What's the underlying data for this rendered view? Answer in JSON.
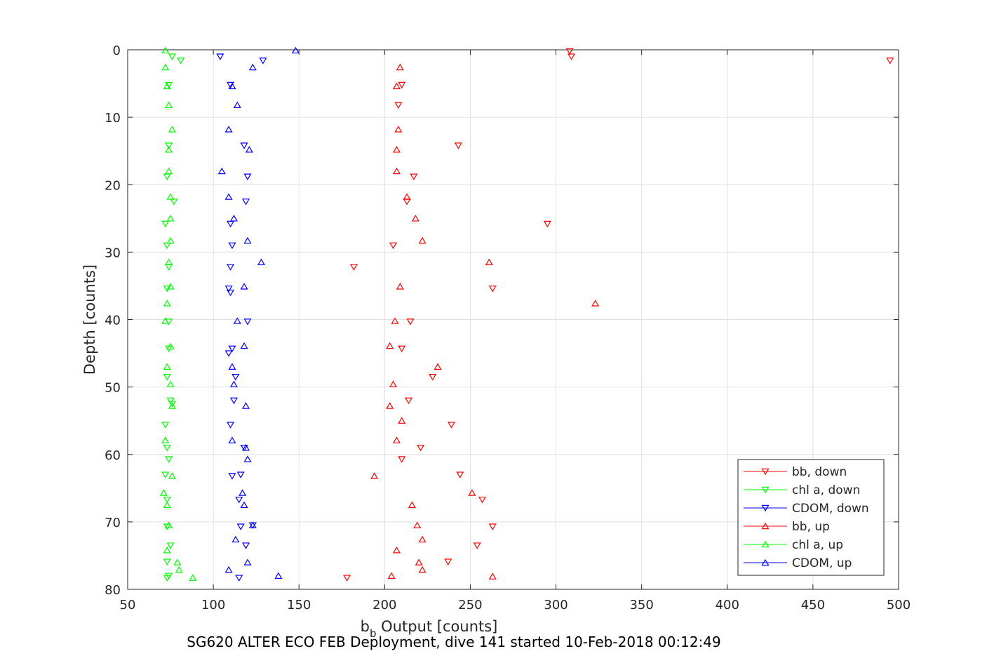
{
  "caption": "SG620 ALTER ECO FEB Deployment, dive 141 started 10-Feb-2018 00:12:49",
  "chart_data": {
    "type": "scatter",
    "xlabel_main": "b",
    "xlabel_sub": "b",
    "xlabel_rest": " Output [counts]",
    "ylabel": "Depth [counts]",
    "xlim": [
      50,
      500
    ],
    "ylim": [
      0,
      80
    ],
    "y_reversed": true,
    "grid": true,
    "legend_position": "lower-right",
    "xticks": [
      "50",
      "100",
      "150",
      "200",
      "250",
      "300",
      "350",
      "400",
      "450",
      "500"
    ],
    "yticks": [
      "0",
      "10",
      "20",
      "30",
      "40",
      "50",
      "60",
      "70",
      "80"
    ],
    "series": [
      {
        "name": "bb, down",
        "color": "#ff0000",
        "marker": "down",
        "x": [
          308,
          309,
          495,
          210,
          208,
          243,
          217,
          213,
          295,
          205,
          182,
          263,
          215,
          210,
          228,
          214,
          239,
          221,
          210,
          244,
          257,
          263,
          254,
          237,
          178
        ],
        "y": [
          0.2,
          1.0,
          1.6,
          5.2,
          8.2,
          14.2,
          18.8,
          22.5,
          25.8,
          29.0,
          32.2,
          35.4,
          40.3,
          44.3,
          48.5,
          52.0,
          55.6,
          59.0,
          60.7,
          63.0,
          66.7,
          70.7,
          73.5,
          75.9,
          78.3
        ]
      },
      {
        "name": "chl a, down",
        "color": "#00ff00",
        "marker": "down",
        "x": [
          76,
          81,
          74,
          74,
          73,
          77,
          72,
          73,
          74,
          73,
          74,
          74,
          73,
          75,
          72,
          73,
          74,
          72,
          73,
          73,
          75,
          73,
          74,
          73,
          76
        ],
        "y": [
          1.0,
          1.6,
          5.2,
          14.2,
          18.8,
          22.5,
          25.8,
          29.0,
          32.2,
          35.4,
          40.3,
          44.3,
          48.5,
          52.0,
          55.6,
          59.0,
          60.7,
          63.0,
          66.7,
          70.7,
          73.5,
          75.9,
          78.0,
          78.3,
          52.5
        ]
      },
      {
        "name": "CDOM, down",
        "color": "#0000ff",
        "marker": "down",
        "x": [
          104,
          129,
          110,
          118,
          120,
          119,
          110,
          111,
          110,
          109,
          120,
          111,
          113,
          112,
          110,
          118,
          111,
          115,
          116,
          119,
          115,
          116,
          110,
          109,
          123
        ],
        "y": [
          1.0,
          1.6,
          5.2,
          14.2,
          18.8,
          22.5,
          25.8,
          29.0,
          32.2,
          35.4,
          40.3,
          44.3,
          48.5,
          52.0,
          55.6,
          59.0,
          63.2,
          66.7,
          70.7,
          73.5,
          78.3,
          63.0,
          36.0,
          45.0,
          70.5
        ]
      },
      {
        "name": "bb, up",
        "color": "#ff0000",
        "marker": "up",
        "x": [
          209,
          207,
          208,
          207,
          207,
          213,
          218,
          222,
          261,
          209,
          323,
          206,
          203,
          231,
          205,
          203,
          210,
          207,
          194,
          251,
          216,
          219,
          222,
          207,
          220,
          222,
          204,
          263
        ],
        "y": [
          2.6,
          5.4,
          11.8,
          14.8,
          18.0,
          21.8,
          25.0,
          28.3,
          31.5,
          35.1,
          37.6,
          40.2,
          43.9,
          47.0,
          49.6,
          52.8,
          55.0,
          57.9,
          63.2,
          65.7,
          67.5,
          70.5,
          72.6,
          74.2,
          76.0,
          77.1,
          78.0,
          78.1
        ]
      },
      {
        "name": "chl a, up",
        "color": "#00ff00",
        "marker": "up",
        "x": [
          72,
          72,
          73,
          74,
          76,
          74,
          74,
          75,
          75,
          75,
          74,
          75,
          73,
          72,
          75,
          73,
          75,
          76,
          72,
          71,
          73,
          74,
          73,
          79,
          80,
          88,
          76
        ],
        "y": [
          0.1,
          2.6,
          5.4,
          8.2,
          11.8,
          14.8,
          18.0,
          21.8,
          25.0,
          28.3,
          31.5,
          35.1,
          37.6,
          40.2,
          44.0,
          47.0,
          49.6,
          52.8,
          57.9,
          65.7,
          67.5,
          70.5,
          74.2,
          76.0,
          77.1,
          78.3,
          63.2
        ]
      },
      {
        "name": "CDOM, up",
        "color": "#0000ff",
        "marker": "up",
        "x": [
          148,
          123,
          111,
          114,
          109,
          121,
          105,
          109,
          112,
          120,
          128,
          118,
          114,
          118,
          111,
          112,
          119,
          111,
          120,
          117,
          118,
          119,
          123,
          113,
          120,
          138,
          109
        ],
        "y": [
          0.1,
          2.6,
          5.4,
          8.2,
          11.8,
          14.8,
          18.0,
          21.8,
          25.0,
          28.3,
          31.5,
          35.1,
          40.2,
          43.9,
          47.0,
          49.6,
          52.8,
          57.9,
          60.7,
          65.7,
          67.5,
          59.0,
          70.5,
          72.6,
          76.0,
          78.0,
          77.1
        ]
      }
    ]
  }
}
